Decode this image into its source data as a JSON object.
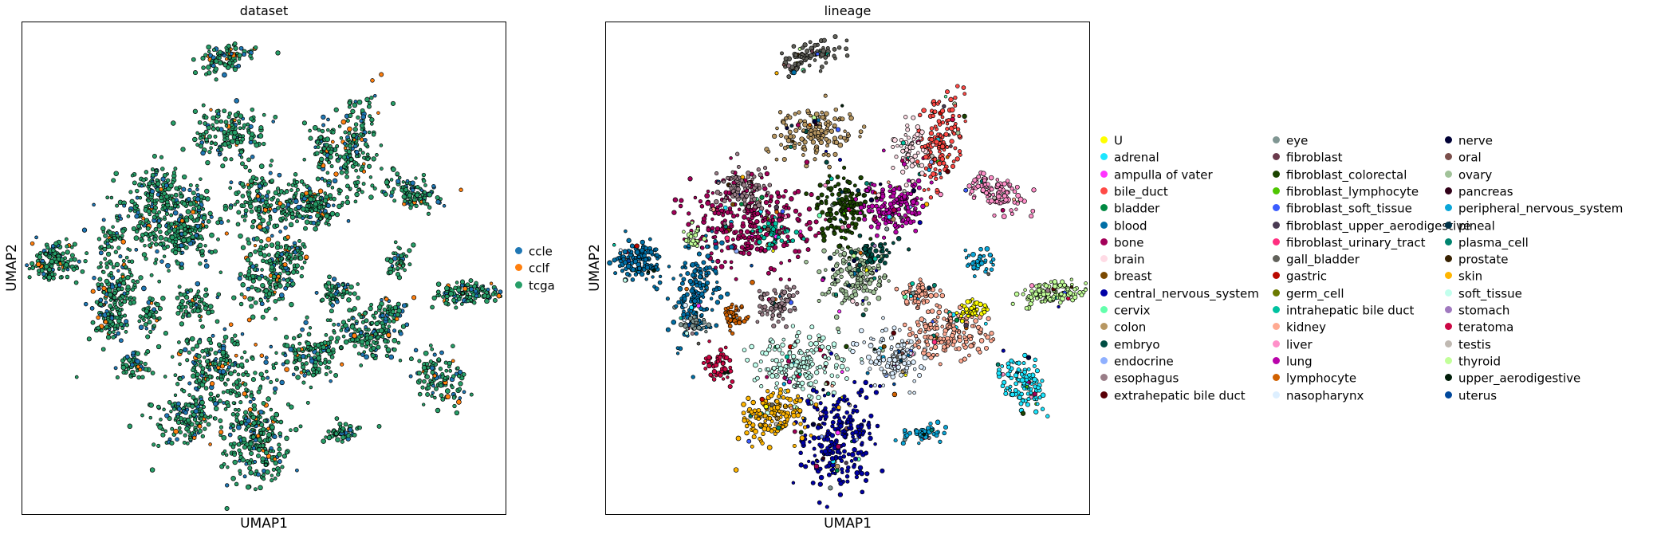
{
  "chart_data": [
    {
      "type": "scatter",
      "title": "dataset",
      "xlabel": "UMAP1",
      "ylabel": "UMAP2",
      "grid": false,
      "legend_position": "right",
      "series": [
        {
          "name": "ccle",
          "color": "#1f77b4"
        },
        {
          "name": "cclf",
          "color": "#ff7f0e"
        },
        {
          "name": "tcga",
          "color": "#279e68"
        }
      ]
    },
    {
      "type": "scatter",
      "title": "lineage",
      "xlabel": "UMAP1",
      "ylabel": "UMAP2",
      "grid": false,
      "legend_position": "right",
      "series": [
        {
          "name": "U",
          "color": "#ffff00"
        },
        {
          "name": "adrenal",
          "color": "#1ce6ff"
        },
        {
          "name": "ampulla of vater",
          "color": "#ff34ff"
        },
        {
          "name": "bile_duct",
          "color": "#ff4a46"
        },
        {
          "name": "bladder",
          "color": "#008941"
        },
        {
          "name": "blood",
          "color": "#006fa6"
        },
        {
          "name": "bone",
          "color": "#a30059"
        },
        {
          "name": "brain",
          "color": "#ffdbe5"
        },
        {
          "name": "breast",
          "color": "#7a4900"
        },
        {
          "name": "central_nervous_system",
          "color": "#0000a6"
        },
        {
          "name": "cervix",
          "color": "#63ffac"
        },
        {
          "name": "colon",
          "color": "#b79762"
        },
        {
          "name": "embryo",
          "color": "#004d43"
        },
        {
          "name": "endocrine",
          "color": "#8fb0ff"
        },
        {
          "name": "esophagus",
          "color": "#997d87"
        },
        {
          "name": "extrahepatic bile duct",
          "color": "#5a0007"
        },
        {
          "name": "eye",
          "color": "#809693"
        },
        {
          "name": "fibroblast",
          "color": "#6a3a4c"
        },
        {
          "name": "fibroblast_colorectal",
          "color": "#1b4400"
        },
        {
          "name": "fibroblast_lymphocyte",
          "color": "#4fc601"
        },
        {
          "name": "fibroblast_soft_tissue",
          "color": "#3b5dff"
        },
        {
          "name": "fibroblast_upper_aerodigestive",
          "color": "#4a3b53"
        },
        {
          "name": "fibroblast_urinary_tract",
          "color": "#ff2f80"
        },
        {
          "name": "gall_bladder",
          "color": "#61615a"
        },
        {
          "name": "gastric",
          "color": "#ba0900"
        },
        {
          "name": "germ_cell",
          "color": "#6b7900"
        },
        {
          "name": "intrahepatic bile duct",
          "color": "#00c2a0"
        },
        {
          "name": "kidney",
          "color": "#ffaa92"
        },
        {
          "name": "liver",
          "color": "#ff90c9"
        },
        {
          "name": "lung",
          "color": "#b903aa"
        },
        {
          "name": "lymphocyte",
          "color": "#d16100"
        },
        {
          "name": "nasopharynx",
          "color": "#ddefff"
        },
        {
          "name": "nerve",
          "color": "#000035"
        },
        {
          "name": "oral",
          "color": "#7b4f4b"
        },
        {
          "name": "ovary",
          "color": "#a1c299"
        },
        {
          "name": "pancreas",
          "color": "#300018"
        },
        {
          "name": "peripheral_nervous_system",
          "color": "#0aa6d8"
        },
        {
          "name": "pineal",
          "color": "#013349"
        },
        {
          "name": "plasma_cell",
          "color": "#00846f"
        },
        {
          "name": "prostate",
          "color": "#372101"
        },
        {
          "name": "skin",
          "color": "#ffb500"
        },
        {
          "name": "soft_tissue",
          "color": "#c2ffed"
        },
        {
          "name": "stomach",
          "color": "#a079bf"
        },
        {
          "name": "teratoma",
          "color": "#cc0744"
        },
        {
          "name": "testis",
          "color": "#c0b9b2"
        },
        {
          "name": "thyroid",
          "color": "#c2ff99"
        },
        {
          "name": "upper_aerodigestive",
          "color": "#001e09"
        },
        {
          "name": "uterus",
          "color": "#00489c"
        }
      ]
    }
  ]
}
